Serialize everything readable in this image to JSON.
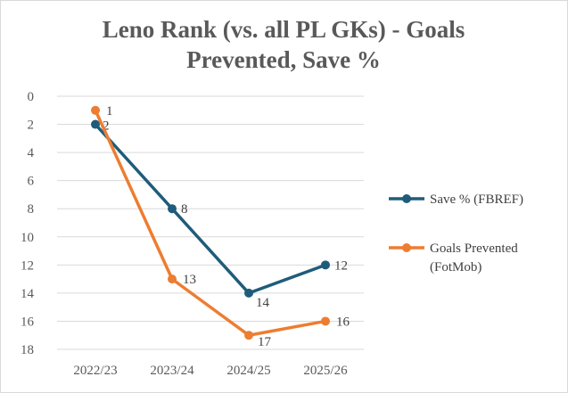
{
  "chart_data": {
    "type": "line",
    "title_lines": [
      "Leno Rank (vs. all PL GKs) - Goals",
      "Prevented, Save %"
    ],
    "categories": [
      "2022/23",
      "2023/24",
      "2024/25",
      "2025/26"
    ],
    "y_axis": {
      "reversed": true,
      "min": 0,
      "max": 18,
      "step": 2
    },
    "y_ticks": [
      "0",
      "2",
      "4",
      "6",
      "8",
      "10",
      "12",
      "14",
      "16",
      "18"
    ],
    "grid": true,
    "legend_position": "right",
    "series": [
      {
        "name": "Save % (FBREF)",
        "legend_lines": [
          "Save % (FBREF)"
        ],
        "color": "#1f5c7a",
        "values": [
          2,
          8,
          14,
          12
        ],
        "labels": [
          "2",
          "8",
          "14",
          "12"
        ]
      },
      {
        "name": "Goals Prevented (FotMob)",
        "legend_lines": [
          "Goals Prevented",
          "(FotMob)"
        ],
        "color": "#ed7d31",
        "values": [
          1,
          13,
          17,
          16
        ],
        "labels": [
          "1",
          "13",
          "17",
          "16"
        ]
      }
    ]
  }
}
